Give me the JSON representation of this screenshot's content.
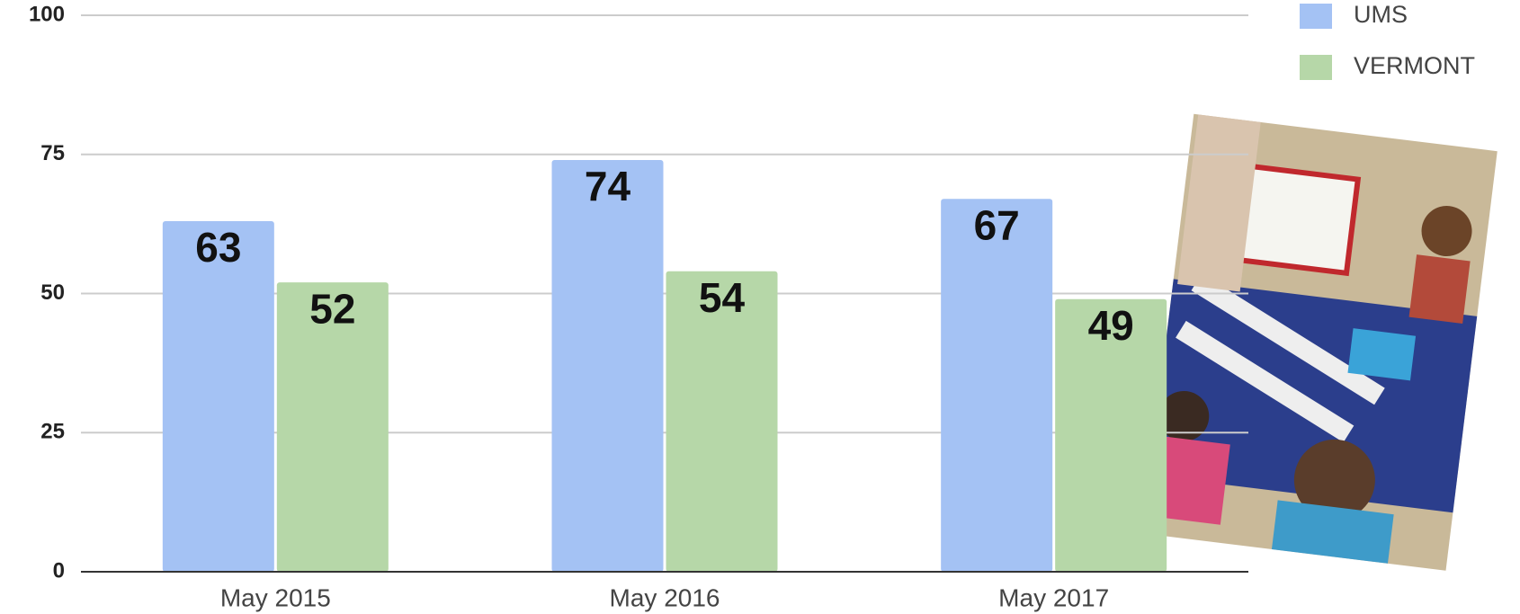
{
  "chart_data": {
    "type": "bar",
    "categories": [
      "May 2015",
      "May 2016",
      "May 2017"
    ],
    "series": [
      {
        "name": "UMS",
        "color": "#a4c2f4",
        "values": [
          63,
          74,
          67
        ]
      },
      {
        "name": "VERMONT",
        "color": "#b6d7a8",
        "values": [
          52,
          54,
          49
        ]
      }
    ],
    "ylim": [
      0,
      100
    ],
    "yticks": [
      0,
      25,
      50,
      75,
      100
    ],
    "grid": true,
    "legend": "top-right"
  }
}
